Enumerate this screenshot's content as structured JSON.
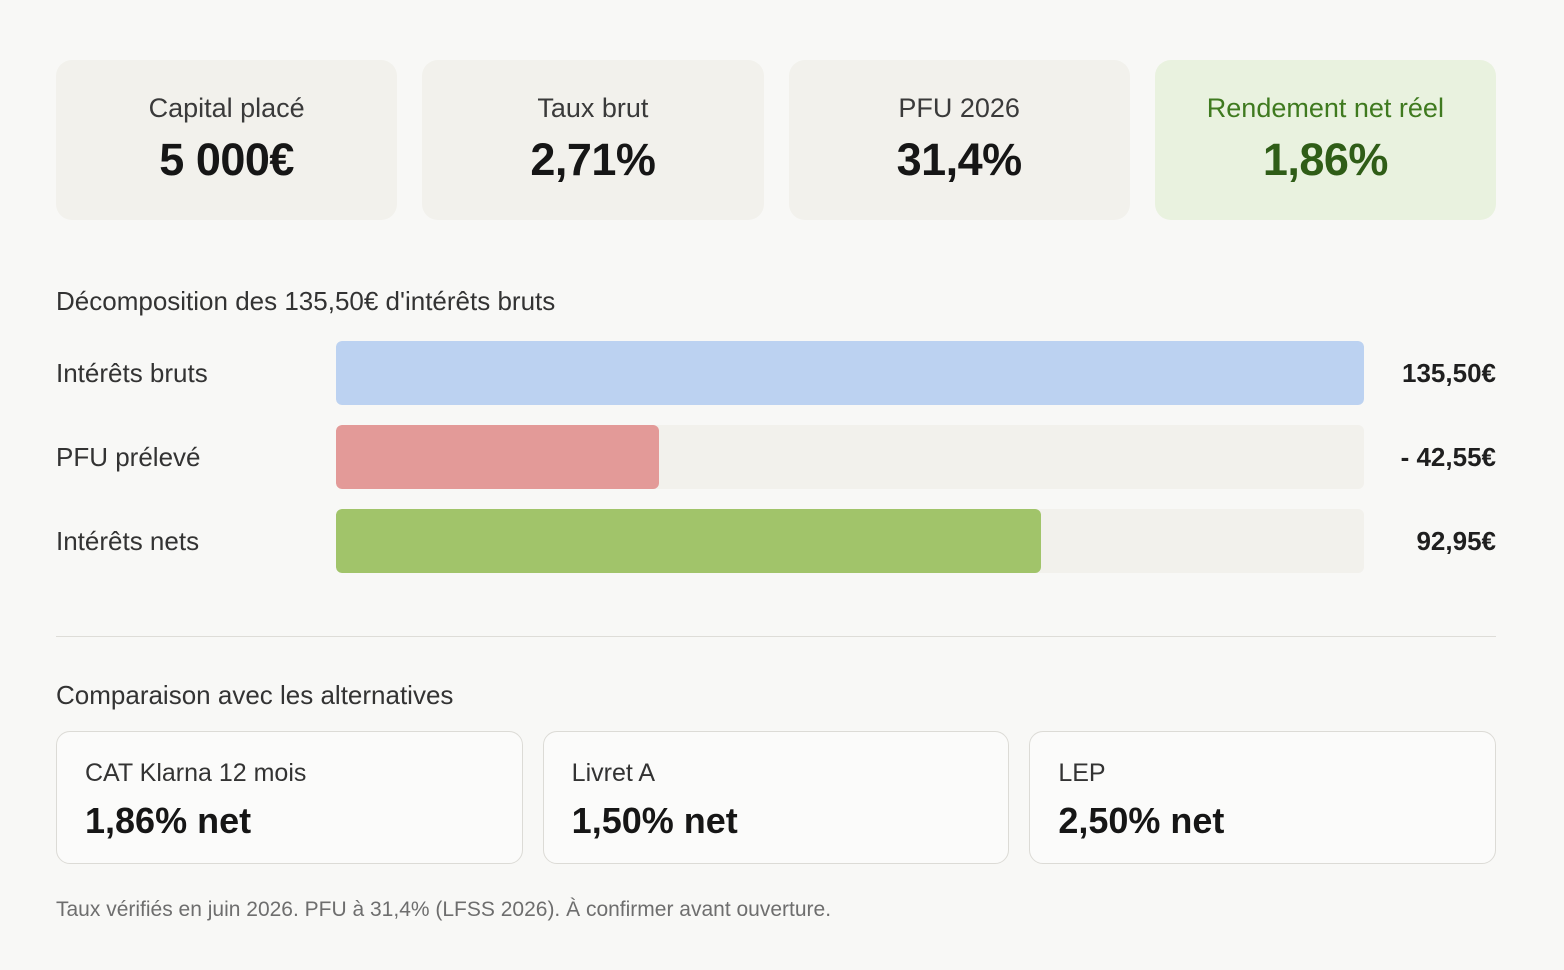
{
  "stats": [
    {
      "label": "Capital placé",
      "value": "5 000€"
    },
    {
      "label": "Taux brut",
      "value": "2,71%"
    },
    {
      "label": "PFU 2026",
      "value": "31,4%"
    },
    {
      "label": "Rendement net réel",
      "value": "1,86%"
    }
  ],
  "breakdown": {
    "title": "Décomposition des 135,50€ d'intérêts bruts",
    "rows": [
      {
        "label": "Intérêts bruts",
        "value": "135,50€",
        "fraction": 1.0,
        "color": "#bcd2f1"
      },
      {
        "label": "PFU prélevé",
        "value": "- 42,55€",
        "fraction": 0.314,
        "color": "#e39a98"
      },
      {
        "label": "Intérêts nets",
        "value": "92,95€",
        "fraction": 0.686,
        "color": "#a1c46a"
      }
    ]
  },
  "comparison": {
    "title": "Comparaison avec les alternatives",
    "items": [
      {
        "name": "CAT Klarna 12 mois",
        "value": "1,86% net"
      },
      {
        "name": "Livret A",
        "value": "1,50% net"
      },
      {
        "name": "LEP",
        "value": "2,50% net"
      }
    ]
  },
  "footnote": "Taux vérifiés en juin 2026. PFU à 31,4% (LFSS 2026). À confirmer avant ouverture."
}
